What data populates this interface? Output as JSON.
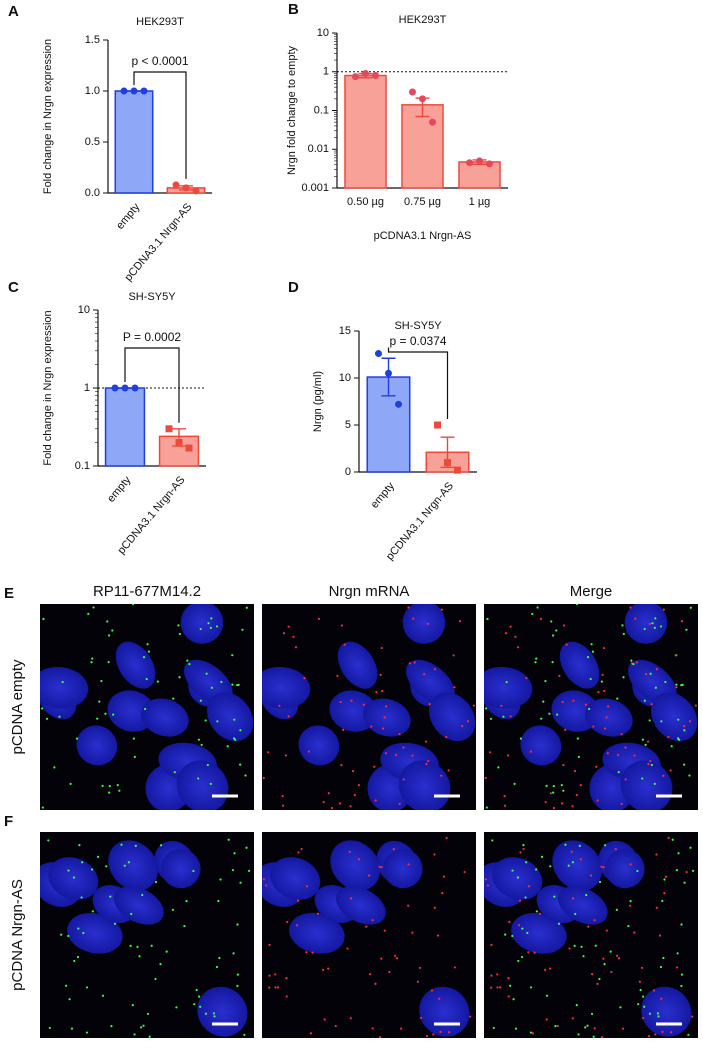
{
  "chart_data": [
    {
      "type": "bar",
      "panel": "A",
      "title": "HEK293T",
      "y_label": "Fold change in Nrgn expression",
      "categories": [
        "empty",
        "pCDNA3.1 Nrgn-AS"
      ],
      "values": [
        1.0,
        0.05
      ],
      "errors": [
        0,
        0.02
      ],
      "points": [
        [
          1.0,
          1.0,
          1.0
        ],
        [
          0.08,
          0.05,
          0.02
        ]
      ],
      "markers": [
        "circle",
        "circle"
      ],
      "colors": [
        "#8ea7f7",
        "#f7a199"
      ],
      "edge_colors": [
        "#1f3fe0",
        "#ee4a3c"
      ],
      "ylim": [
        0,
        1.5
      ],
      "yticks": [
        {
          "value": 0,
          "label": "0.0"
        },
        0.5,
        {
          "value": 1,
          "label": "1.0"
        },
        1.5
      ],
      "log_scale": false,
      "annotation": "p < 0.0001"
    },
    {
      "type": "bar",
      "panel": "B",
      "title": "HEK293T",
      "y_label": "Nrgn fold change to empty",
      "x_label": "pCDNA3.1 Nrgn-AS",
      "categories": [
        "0.50 µg",
        "0.75 µg",
        "1 µg"
      ],
      "values": [
        0.8,
        0.14,
        0.0047
      ],
      "errors": [
        0.1,
        0.07,
        0.0006
      ],
      "points": [
        [
          0.75,
          0.9,
          0.8
        ],
        [
          0.3,
          0.2,
          0.05
        ],
        [
          0.0045,
          0.005,
          0.0042
        ]
      ],
      "markers": [
        "circle",
        "circle",
        "circle"
      ],
      "colors": [
        "#f7a199",
        "#f7a199",
        "#f7a199"
      ],
      "edge_colors": [
        "#ee4a3c",
        "#ee4a3c",
        "#ee4a3c"
      ],
      "point_color": "#e5485c",
      "ylim": [
        0.001,
        10
      ],
      "yticks": [
        0.001,
        0.01,
        0.1,
        1,
        10
      ],
      "log_scale": true,
      "reference_line": 1
    },
    {
      "type": "bar",
      "panel": "C",
      "title": "SH-SY5Y",
      "y_label": "Fold change in Nrgn expression",
      "categories": [
        "empty",
        "pCDNA3.1 Nrgn-AS"
      ],
      "values": [
        1.0,
        0.24
      ],
      "errors": [
        0,
        0.06
      ],
      "points": [
        [
          1.0,
          1.0,
          1.0
        ],
        [
          0.3,
          0.2,
          0.17
        ]
      ],
      "markers": [
        "circle",
        "square"
      ],
      "colors": [
        "#8ea7f7",
        "#f7a199"
      ],
      "edge_colors": [
        "#1f3fe0",
        "#ee4a3c"
      ],
      "ylim": [
        0.1,
        10
      ],
      "yticks": [
        0.1,
        1,
        10
      ],
      "log_scale": true,
      "reference_line": 1,
      "annotation": "P = 0.0002"
    },
    {
      "type": "bar",
      "panel": "D",
      "title": "SH-SY5Y",
      "y_label": "Nrgn (pg/ml)",
      "categories": [
        "empty",
        "pCDNA3.1 Nrgn-AS"
      ],
      "values": [
        10.1,
        2.1
      ],
      "errors": [
        2.0,
        1.6
      ],
      "points": [
        [
          12.6,
          10.5,
          7.2
        ],
        [
          5.0,
          1.0,
          0.2
        ]
      ],
      "markers": [
        "circle",
        "square"
      ],
      "colors": [
        "#8ea7f7",
        "#f7a199"
      ],
      "edge_colors": [
        "#1f3fe0",
        "#ee4a3c"
      ],
      "ylim": [
        0,
        15
      ],
      "yticks": [
        0,
        5,
        10,
        15
      ],
      "log_scale": false,
      "annotation": "p = 0.0374"
    }
  ],
  "images": {
    "columns": [
      "RP11-677M14.2",
      "Nrgn mRNA",
      "Merge"
    ],
    "rows": [
      {
        "letter": "E",
        "label": "pCDNA empty"
      },
      {
        "letter": "F",
        "label": "pCDNA Nrgn-AS"
      }
    ]
  }
}
